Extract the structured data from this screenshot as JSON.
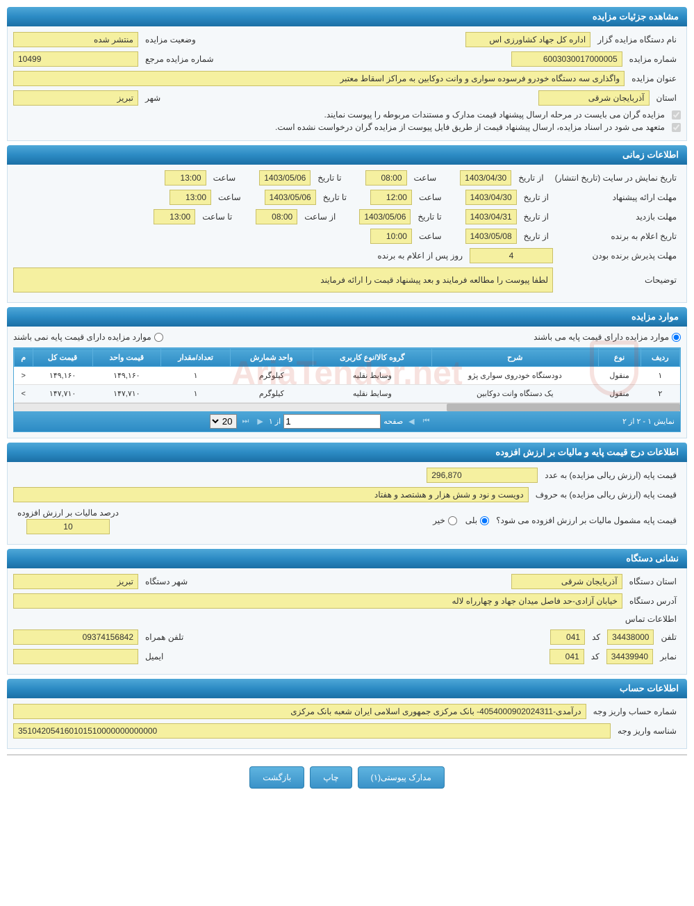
{
  "sections": {
    "details": "مشاهده جزئیات مزایده",
    "timing": "اطلاعات زمانی",
    "items": "موارد مزایده",
    "pricing": "اطلاعات درج قیمت پایه و مالیات بر ارزش افزوده",
    "agency": "نشانی دستگاه",
    "account": "اطلاعات حساب"
  },
  "details": {
    "agency_label": "نام دستگاه مزایده گزار",
    "agency_value": "اداره کل جهاد کشاورزی اس",
    "status_label": "وضعیت مزایده",
    "status_value": "منتشر شده",
    "number_label": "شماره مزایده",
    "number_value": "6003030017000005",
    "ref_label": "شماره مزایده مرجع",
    "ref_value": "10499",
    "title_label": "عنوان مزایده",
    "title_value": "واگذاری سه دستگاه خودرو فرسوده سواری و وانت دوکابین به مراکز اسقاط معتبر",
    "province_label": "استان",
    "province_value": "آذربایجان شرقی",
    "city_label": "شهر",
    "city_value": "تبریز",
    "check1": "مزایده گران می بایست در مرحله ارسال پیشنهاد قیمت مدارک و مستندات مربوطه را پیوست نمایند.",
    "check2": "متعهد می شود در اسناد مزایده، ارسال پیشنهاد قیمت از طریق فایل پیوست از مزایده گران درخواست نشده است."
  },
  "timing": {
    "publish_label": "تاریخ نمایش در سایت (تاریخ انتشار)",
    "from_label": "از تاریخ",
    "to_label": "تا تاریخ",
    "time_label": "ساعت",
    "to_time_label": "تا ساعت",
    "from_time_label": "از ساعت",
    "publish_from_date": "1403/04/30",
    "publish_from_time": "08:00",
    "publish_to_date": "1403/05/06",
    "publish_to_time": "13:00",
    "proposal_label": "مهلت ارائه پیشنهاد",
    "proposal_from_date": "1403/04/30",
    "proposal_from_time": "12:00",
    "proposal_to_date": "1403/05/06",
    "proposal_to_time": "13:00",
    "visit_label": "مهلت بازدید",
    "visit_from_date": "1403/04/31",
    "visit_to_date": "1403/05/06",
    "visit_from_time": "08:00",
    "visit_to_time": "13:00",
    "winner_label": "تاریخ اعلام به برنده",
    "winner_date": "1403/05/08",
    "winner_time": "10:00",
    "accept_label": "مهلت پذیرش برنده بودن",
    "accept_days": "4",
    "accept_suffix": "روز پس از اعلام به برنده",
    "notes_label": "توضیحات",
    "notes_value": "لطفا پیوست را مطالعه فرمایند و بعد پیشنهاد قیمت را ارائه فرمایند"
  },
  "items": {
    "has_base_label": "موارد مزایده دارای قیمت پایه می باشند",
    "no_base_label": "موارد مزایده دارای قیمت پایه نمی باشند",
    "columns": {
      "row": "ردیف",
      "type": "نوع",
      "desc": "شرح",
      "cat": "گروه کالا/نوع کاربری",
      "unit": "واحد شمارش",
      "qty": "تعداد/مقدار",
      "unit_price": "قیمت واحد",
      "total": "قیمت کل",
      "more": "م"
    },
    "rows": [
      {
        "n": "۱",
        "type": "منقول",
        "desc": "دودستگاه خودروی سواری پژو",
        "cat": "وسایط نقلیه",
        "unit": "کیلوگرم",
        "qty": "۱",
        "unit_price": "۱۴۹,۱۶۰",
        "total": "۱۴۹,۱۶۰",
        "more": "<"
      },
      {
        "n": "۲",
        "type": "منقول",
        "desc": "یک دستگاه وانت دوکابین",
        "cat": "وسایط نقلیه",
        "unit": "کیلوگرم",
        "qty": "۱",
        "unit_price": "۱۴۷,۷۱۰",
        "total": "۱۴۷,۷۱۰",
        "more": ">"
      }
    ],
    "pager": {
      "summary": "نمایش ۱ - ۲ از ۲",
      "page_label": "صفحه",
      "page_value": "1",
      "of_label": "از ۱",
      "per_page": "20"
    }
  },
  "pricing": {
    "base_num_label": "قیمت پایه (ارزش ریالی مزایده) به عدد",
    "base_num_value": "296,870",
    "base_txt_label": "قیمت پایه (ارزش ریالی مزایده) به حروف",
    "base_txt_value": "دویست و نود و شش هزار و هشتصد و هفتاد",
    "vat_q": "قیمت پایه مشمول مالیات بر ارزش افزوده می شود؟",
    "yes": "بلی",
    "no": "خیر",
    "vat_pct_label": "درصد مالیات بر ارزش افزوده",
    "vat_pct_value": "10"
  },
  "agency": {
    "province_label": "استان دستگاه",
    "province_value": "آذربایجان شرقی",
    "city_label": "شهر دستگاه",
    "city_value": "تبریز",
    "addr_label": "آدرس دستگاه",
    "addr_value": "خیابان آزادی-حد فاصل میدان جهاد و چهارراه لاله",
    "contact_label": "اطلاعات تماس",
    "phone_label": "تلفن",
    "phone_value": "34438000",
    "code_label": "کد",
    "code_value": "041",
    "mobile_label": "تلفن همراه",
    "mobile_value": "09374156842",
    "fax_label": "نمابر",
    "fax_value": "34439940",
    "fax_code": "041",
    "email_label": "ایمیل",
    "email_value": ""
  },
  "account": {
    "acct_label": "شماره حساب واریز وجه",
    "acct_value": "درآمدی-4054000902024311- بانک مرکزی جمهوری اسلامی ایران شعبه بانک مرکزی",
    "id_label": "شناسه واریز وجه",
    "id_value": "351042054160101510000000000000"
  },
  "buttons": {
    "attachments": "مدارک پیوستی(۱)",
    "print": "چاپ",
    "back": "بازگشت"
  },
  "watermark": "AriaTender.net"
}
